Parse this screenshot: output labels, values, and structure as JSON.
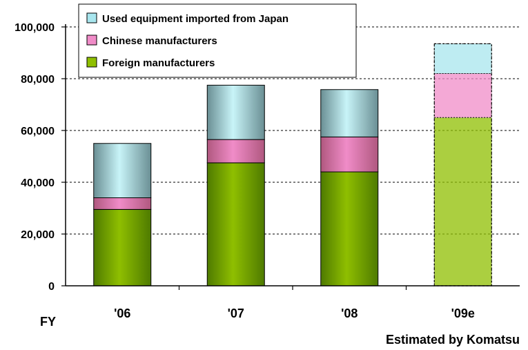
{
  "chart_data": {
    "type": "bar",
    "stacked": true,
    "categories": [
      "'06",
      "'07",
      "'08",
      "'09e"
    ],
    "estimated_categories": [
      "'09e"
    ],
    "series": [
      {
        "name": "Foreign manufacturers",
        "values": [
          29500,
          47500,
          44000,
          65000
        ],
        "color": "#8fbf00"
      },
      {
        "name": "Chinese manufacturers",
        "values": [
          4500,
          9000,
          13500,
          17000
        ],
        "color": "#f08cc8"
      },
      {
        "name": "Used equipment imported from Japan",
        "values": [
          21000,
          21000,
          18300,
          11500
        ],
        "color": "#a8e6ee"
      }
    ],
    "legend_order": [
      "Used equipment imported from Japan",
      "Chinese manufacturers",
      "Foreign manufacturers"
    ],
    "legend_position": "top-left",
    "xlabel": "FY",
    "ylim": [
      0,
      100000
    ],
    "yticks": [
      "0",
      "20,000",
      "40,000",
      "60,000",
      "80,000",
      "100,000"
    ],
    "grid": true,
    "note": "Estimated by Komatsu"
  }
}
